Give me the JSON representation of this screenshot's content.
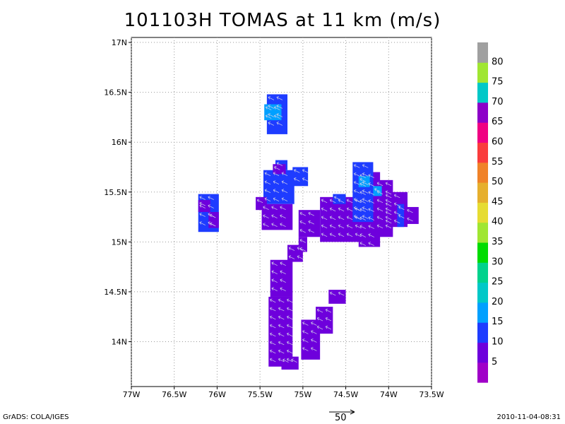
{
  "title": "101103H TOMAS at 11 km (m/s)",
  "footer": {
    "left": "GrADS: COLA/IGES",
    "right": "2010-11-04-08:31",
    "reference_vector_label": "50"
  },
  "chart_data": {
    "type": "heatmap",
    "title": "101103H TOMAS at 11 km (m/s)",
    "x_axis": {
      "range": [
        -77.0,
        -73.5
      ],
      "unit": "deg lon",
      "ticks": [
        {
          "value": -77.0,
          "label": "77W"
        },
        {
          "value": -76.5,
          "label": "76.5W"
        },
        {
          "value": -76.0,
          "label": "76W"
        },
        {
          "value": -75.5,
          "label": "75.5W"
        },
        {
          "value": -75.0,
          "label": "75W"
        },
        {
          "value": -74.5,
          "label": "74.5W"
        },
        {
          "value": -74.0,
          "label": "74W"
        },
        {
          "value": -73.5,
          "label": "73.5W"
        }
      ]
    },
    "y_axis": {
      "range": [
        13.55,
        17.05
      ],
      "unit": "deg lat",
      "ticks": [
        {
          "value": 14.0,
          "label": "14N"
        },
        {
          "value": 14.5,
          "label": "14.5N"
        },
        {
          "value": 15.0,
          "label": "15N"
        },
        {
          "value": 15.5,
          "label": "15.5N"
        },
        {
          "value": 16.0,
          "label": "16N"
        },
        {
          "value": 16.5,
          "label": "16.5N"
        },
        {
          "value": 17.0,
          "label": "17N"
        }
      ]
    },
    "grid": true,
    "colorbar": {
      "labels": [
        "5",
        "10",
        "15",
        "20",
        "25",
        "30",
        "35",
        "40",
        "45",
        "50",
        "55",
        "60",
        "65",
        "70",
        "75",
        "80"
      ],
      "colors": [
        "#a000c8",
        "#6e00dc",
        "#1e3cff",
        "#00a0ff",
        "#00c8c8",
        "#00d28c",
        "#00dc00",
        "#a0e632",
        "#e6dc32",
        "#e6af2d",
        "#f08228",
        "#fa3c3c",
        "#f00082",
        "#8c00c8",
        "#00c8c8",
        "#a0e632",
        "#a0a0a0"
      ]
    },
    "cells": [
      {
        "lon": [
          -75.42,
          -75.18
        ],
        "lat": [
          16.08,
          16.48
        ],
        "speed": 12
      },
      {
        "lon": [
          -75.45,
          -75.25
        ],
        "lat": [
          16.22,
          16.38
        ],
        "speed": 17
      },
      {
        "lon": [
          -75.32,
          -75.18
        ],
        "lat": [
          15.72,
          15.82
        ],
        "speed": 12
      },
      {
        "lon": [
          -75.46,
          -75.1
        ],
        "lat": [
          15.38,
          15.72
        ],
        "speed": 12
      },
      {
        "lon": [
          -75.12,
          -74.94
        ],
        "lat": [
          15.56,
          15.75
        ],
        "speed": 12
      },
      {
        "lon": [
          -75.55,
          -75.42
        ],
        "lat": [
          15.32,
          15.45
        ],
        "speed": 8
      },
      {
        "lon": [
          -75.48,
          -75.12
        ],
        "lat": [
          15.12,
          15.38
        ],
        "speed": 7
      },
      {
        "lon": [
          -75.35,
          -75.2
        ],
        "lat": [
          15.68,
          15.78
        ],
        "speed": 8
      },
      {
        "lon": [
          -75.05,
          -74.8
        ],
        "lat": [
          15.05,
          15.32
        ],
        "speed": 7
      },
      {
        "lon": [
          -74.8,
          -74.32
        ],
        "lat": [
          15.0,
          15.45
        ],
        "speed": 7
      },
      {
        "lon": [
          -74.35,
          -74.1
        ],
        "lat": [
          14.95,
          15.7
        ],
        "speed": 7
      },
      {
        "lon": [
          -74.15,
          -73.95
        ],
        "lat": [
          15.05,
          15.62
        ],
        "speed": 7
      },
      {
        "lon": [
          -74.05,
          -73.78
        ],
        "lat": [
          15.15,
          15.5
        ],
        "speed": 7
      },
      {
        "lon": [
          -73.8,
          -73.65
        ],
        "lat": [
          15.18,
          15.35
        ],
        "speed": 7
      },
      {
        "lon": [
          -74.42,
          -74.18
        ],
        "lat": [
          15.2,
          15.8
        ],
        "speed": 12
      },
      {
        "lon": [
          -74.35,
          -74.22
        ],
        "lat": [
          15.55,
          15.66
        ],
        "speed": 18
      },
      {
        "lon": [
          -74.18,
          -74.08
        ],
        "lat": [
          15.46,
          15.56
        ],
        "speed": 18
      },
      {
        "lon": [
          -73.9,
          -73.82
        ],
        "lat": [
          15.15,
          15.38
        ],
        "speed": 12
      },
      {
        "lon": [
          -74.65,
          -74.5
        ],
        "lat": [
          15.38,
          15.48
        ],
        "speed": 12
      },
      {
        "lon": [
          -76.22,
          -75.98
        ],
        "lat": [
          15.1,
          15.48
        ],
        "speed": 12
      },
      {
        "lon": [
          -76.22,
          -76.08
        ],
        "lat": [
          15.3,
          15.42
        ],
        "speed": 7
      },
      {
        "lon": [
          -76.1,
          -75.98
        ],
        "lat": [
          15.14,
          15.3
        ],
        "speed": 8
      },
      {
        "lon": [
          -75.18,
          -75.0
        ],
        "lat": [
          14.8,
          14.97
        ],
        "speed": 7
      },
      {
        "lon": [
          -75.05,
          -74.95
        ],
        "lat": [
          14.9,
          15.05
        ],
        "speed": 7
      },
      {
        "lon": [
          -75.38,
          -75.12
        ],
        "lat": [
          14.45,
          14.82
        ],
        "speed": 7
      },
      {
        "lon": [
          -75.4,
          -75.12
        ],
        "lat": [
          13.75,
          14.45
        ],
        "speed": 7
      },
      {
        "lon": [
          -75.25,
          -75.05
        ],
        "lat": [
          13.72,
          13.85
        ],
        "speed": 7
      },
      {
        "lon": [
          -75.02,
          -74.8
        ],
        "lat": [
          13.82,
          14.22
        ],
        "speed": 7
      },
      {
        "lon": [
          -74.85,
          -74.65
        ],
        "lat": [
          14.08,
          14.35
        ],
        "speed": 7
      },
      {
        "lon": [
          -74.7,
          -74.5
        ],
        "lat": [
          14.38,
          14.52
        ],
        "speed": 7
      }
    ]
  }
}
